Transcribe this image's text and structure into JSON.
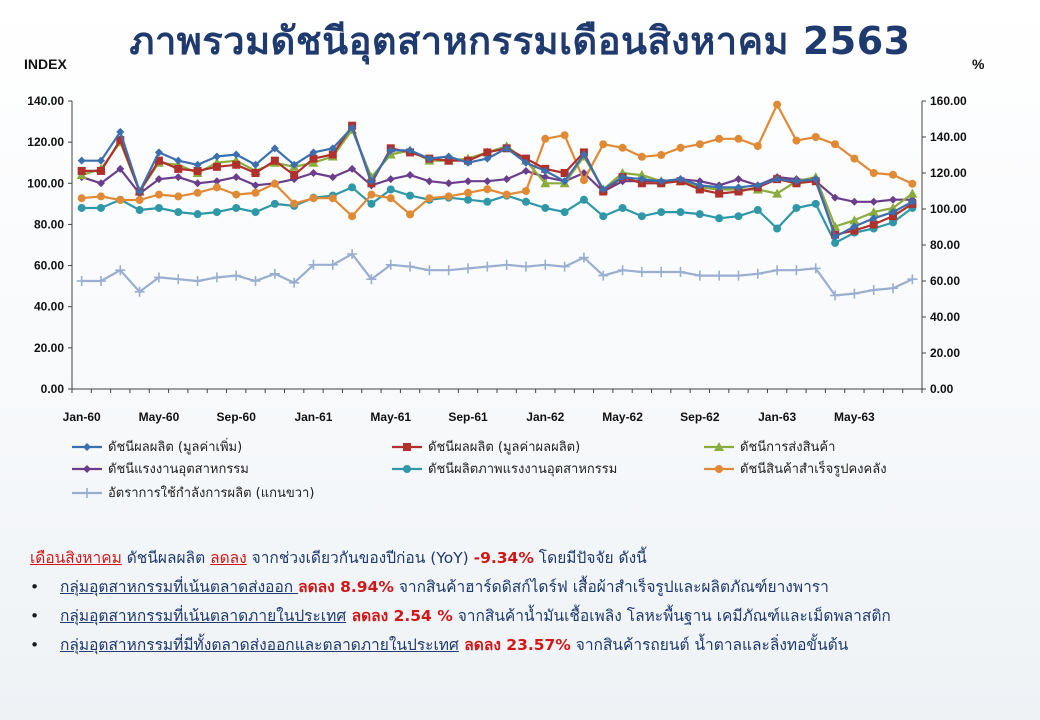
{
  "title": "ภาพรวมดัชนีอุตสาหกรรมเดือนสิงหาคม  2563",
  "left_axis_unit": "INDEX",
  "right_axis_unit": "%",
  "chart_data": {
    "type": "line",
    "x_tick_labels": [
      "Jan-60",
      "May-60",
      "Sep-60",
      "Jan-61",
      "May-61",
      "Sep-61",
      "Jan-62",
      "May-62",
      "Sep-62",
      "Jan-63",
      "May-63"
    ],
    "x": [
      "Jan-60",
      "Feb-60",
      "Mar-60",
      "Apr-60",
      "May-60",
      "Jun-60",
      "Jul-60",
      "Aug-60",
      "Sep-60",
      "Oct-60",
      "Nov-60",
      "Dec-60",
      "Jan-61",
      "Feb-61",
      "Mar-61",
      "Apr-61",
      "May-61",
      "Jun-61",
      "Jul-61",
      "Aug-61",
      "Sep-61",
      "Oct-61",
      "Nov-61",
      "Dec-61",
      "Jan-62",
      "Feb-62",
      "Mar-62",
      "Apr-62",
      "May-62",
      "Jun-62",
      "Jul-62",
      "Aug-62",
      "Sep-62",
      "Oct-62",
      "Nov-62",
      "Dec-62",
      "Jan-63",
      "Feb-63",
      "Mar-63",
      "Apr-63",
      "May-63",
      "Jun-63",
      "Jul-63",
      "Aug-63"
    ],
    "left_axis": {
      "ylim": [
        0,
        140
      ],
      "ticks": [
        "0.00",
        "20.00",
        "40.00",
        "60.00",
        "80.00",
        "100.00",
        "120.00",
        "140.00"
      ]
    },
    "right_axis": {
      "ylim": [
        0,
        160
      ],
      "ticks": [
        "0.00",
        "20.00",
        "40.00",
        "60.00",
        "80.00",
        "100.00",
        "120.00",
        "140.00",
        "160.00"
      ]
    },
    "series": [
      {
        "name": "ดัชนีผลผลิต (มูลค่าเพิ่ม)",
        "color": "#3a6fb0",
        "marker": "diamond",
        "axis": "left",
        "values": [
          111,
          111,
          125,
          96,
          115,
          111,
          109,
          113,
          114,
          109,
          117,
          109,
          115,
          117,
          127,
          101,
          116,
          116,
          112,
          113,
          110,
          112,
          117,
          110,
          106,
          101,
          114,
          97,
          103,
          102,
          101,
          102,
          99,
          98,
          98,
          99,
          102,
          101,
          102,
          74,
          79,
          83,
          86,
          91
        ]
      },
      {
        "name": "ดัชนีผลผลิต (มูลค่าผลผลิต)",
        "color": "#b0302c",
        "marker": "square",
        "axis": "left",
        "values": [
          106,
          106,
          121,
          96,
          111,
          107,
          106,
          108,
          109,
          105,
          111,
          104,
          112,
          114,
          128,
          100,
          117,
          115,
          112,
          111,
          111,
          115,
          117,
          112,
          107,
          105,
          115,
          96,
          103,
          100,
          100,
          101,
          97,
          95,
          96,
          98,
          102,
          100,
          101,
          75,
          77,
          80,
          84,
          90
        ]
      },
      {
        "name": "ดัชนีการส่งสินค้า",
        "color": "#8aac3c",
        "marker": "triangle",
        "axis": "left",
        "values": [
          104,
          107,
          120,
          96,
          110,
          109,
          105,
          110,
          111,
          106,
          110,
          108,
          110,
          113,
          126,
          103,
          114,
          116,
          111,
          111,
          112,
          115,
          118,
          111,
          100,
          100,
          113,
          97,
          105,
          104,
          101,
          101,
          98,
          97,
          97,
          97,
          95,
          101,
          103,
          79,
          82,
          86,
          88,
          95
        ]
      },
      {
        "name": "ดัชนีแรงงานอุตสาหกรรม",
        "color": "#6a3e8c",
        "marker": "diamond",
        "axis": "left",
        "values": [
          103,
          100,
          107,
          95,
          102,
          103,
          100,
          101,
          103,
          99,
          100,
          102,
          105,
          103,
          107,
          99,
          102,
          104,
          101,
          100,
          101,
          101,
          102,
          106,
          103,
          101,
          105,
          96,
          101,
          101,
          101,
          102,
          101,
          99,
          102,
          99,
          103,
          102,
          101,
          93,
          91,
          91,
          92,
          92
        ]
      },
      {
        "name": "ดัชนีผลิตภาพแรงงานอุตสาหกรรม",
        "color": "#2e98a8",
        "marker": "circle",
        "axis": "left",
        "values": [
          88,
          88,
          92,
          87,
          88,
          86,
          85,
          86,
          88,
          86,
          90,
          89,
          93,
          94,
          98,
          90,
          97,
          94,
          92,
          93,
          92,
          91,
          94,
          91,
          88,
          86,
          92,
          84,
          88,
          84,
          86,
          86,
          85,
          83,
          84,
          87,
          78,
          88,
          90,
          71,
          76,
          78,
          81,
          88
        ]
      },
      {
        "name": "ดัชนีสินค้าสำเร็จรูปคงคลัง",
        "color": "#e08a36",
        "marker": "circle",
        "axis": "right",
        "values": [
          106,
          107,
          105,
          105,
          108,
          107,
          109,
          112,
          108,
          109,
          114,
          103,
          106,
          106,
          96,
          108,
          106,
          97,
          106,
          107,
          109,
          111,
          108,
          110,
          139,
          141,
          116,
          136,
          134,
          129,
          130,
          134,
          136,
          139,
          139,
          135,
          158,
          138,
          140,
          136,
          128,
          120,
          119,
          114
        ]
      },
      {
        "name": "อัตราการใช้กำลังการผลิต (แกนขวา)",
        "color": "#9aaed0",
        "marker": "plus",
        "axis": "right",
        "values": [
          60,
          60,
          66,
          54,
          62,
          61,
          60,
          62,
          63,
          60,
          64,
          59,
          69,
          69,
          75,
          61,
          69,
          68,
          66,
          66,
          67,
          68,
          69,
          68,
          69,
          68,
          73,
          63,
          66,
          65,
          65,
          65,
          63,
          63,
          63,
          64,
          66,
          66,
          67,
          52,
          53,
          55,
          56,
          61
        ]
      }
    ]
  },
  "text": {
    "line1": {
      "month": "เดือนสิงหาคม",
      "a": " ดัชนีผลผลิต ",
      "down": "ลดลง",
      "b": " จากช่วงเดียวกันของปีก่อน (YoY) ",
      "pct": "-9.34%",
      "c": " โดยมีปัจจัย ดังนี้"
    },
    "bullets": [
      {
        "bullet": "•",
        "group": "กลุ่มอุตสาหกรรมที่เน้นตลาดส่งออก ",
        "down": "ลดลง 8.94%",
        "rest": " จากสินค้าฮาร์ดดิสก์ไดร์ฟ เสื้อผ้าสำเร็จรูปและผลิตภัณฑ์ยางพารา"
      },
      {
        "bullet": "•",
        "group": "กลุ่มอุตสาหกรรมที่เน้นตลาดภายในประเทศ",
        "down": " ลดลง 2.54 %",
        "rest": " จากสินค้าน้ำมันเชื้อเพลิง โลหะพื้นฐาน เคมีภัณฑ์และเม็ดพลาสติก"
      },
      {
        "bullet": "•",
        "group": "กลุ่มอุตสาหกรรมที่มีทั้งตลาดส่งออกและตลาดภายในประเทศ",
        "down": " ลดลง 23.57%",
        "rest": " จากสินค้ารถยนต์ น้ำตาลและลิ่งทอขั้นต้น"
      }
    ]
  }
}
